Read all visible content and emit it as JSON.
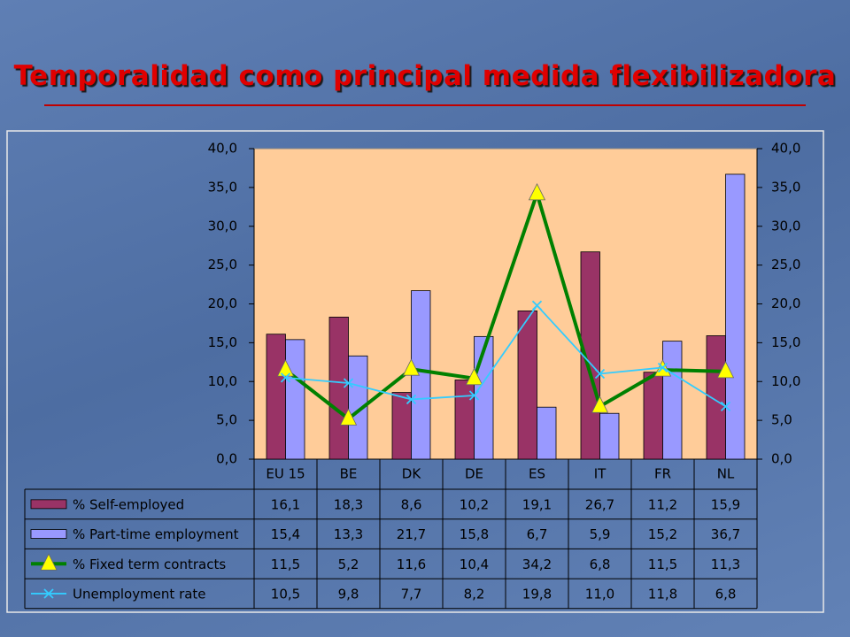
{
  "chart_data": {
    "type": "bar",
    "title": "Temporalidad como principal medida flexibilizadora",
    "categories": [
      "EU 15",
      "BE",
      "DK",
      "DE",
      "ES",
      "IT",
      "FR",
      "NL"
    ],
    "ylim": [
      0,
      40
    ],
    "y2lim": [
      0,
      40
    ],
    "yticks": [
      {
        "value": 0,
        "label": "0,0"
      },
      {
        "value": 5,
        "label": "5,0"
      },
      {
        "value": 10,
        "label": "10,0"
      },
      {
        "value": 15,
        "label": "15,0"
      },
      {
        "value": 20,
        "label": "20,0"
      },
      {
        "value": 25,
        "label": "25,0"
      },
      {
        "value": 30,
        "label": "30,0"
      },
      {
        "value": 35,
        "label": "35,0"
      },
      {
        "value": 40,
        "label": "40,0"
      }
    ],
    "y2ticks": [
      {
        "value": 0,
        "label": "0,0"
      },
      {
        "value": 5,
        "label": "5,0"
      },
      {
        "value": 10,
        "label": "10,0"
      },
      {
        "value": 15,
        "label": "15,0"
      },
      {
        "value": 20,
        "label": "20,0"
      },
      {
        "value": 25,
        "label": "25,0"
      },
      {
        "value": 30,
        "label": "30,0"
      },
      {
        "value": 35,
        "label": "35,0"
      },
      {
        "value": 40,
        "label": "40,0"
      }
    ],
    "plot_background": "#ffcc99",
    "series": [
      {
        "name": "% Self-employed",
        "type": "bar",
        "color": "#993366",
        "values": [
          16.1,
          18.3,
          8.6,
          10.2,
          19.1,
          26.7,
          11.2,
          15.9
        ],
        "value_labels": [
          "16,1",
          "18,3",
          "8,6",
          "10,2",
          "19,1",
          "26,7",
          "11,2",
          "15,9"
        ]
      },
      {
        "name": "% Part-time employment",
        "type": "bar",
        "color": "#9999ff",
        "values": [
          15.4,
          13.3,
          21.7,
          15.8,
          6.7,
          5.9,
          15.2,
          36.7
        ],
        "value_labels": [
          "15,4",
          "13,3",
          "21,7",
          "15,8",
          "6,7",
          "5,9",
          "15,2",
          "36,7"
        ]
      },
      {
        "name": "% Fixed term contracts",
        "type": "line",
        "color": "#008000",
        "marker": "triangle",
        "marker_color": "#ffff00",
        "values": [
          11.5,
          5.2,
          11.6,
          10.4,
          34.2,
          6.8,
          11.5,
          11.3
        ],
        "value_labels": [
          "11,5",
          "5,2",
          "11,6",
          "10,4",
          "34,2",
          "6,8",
          "11,5",
          "11,3"
        ]
      },
      {
        "name": "Unemployment rate",
        "type": "line",
        "color": "#33ccff",
        "marker": "x",
        "axis": "y2",
        "values": [
          10.5,
          9.8,
          7.7,
          8.2,
          19.8,
          11.0,
          11.8,
          6.8
        ],
        "value_labels": [
          "10,5",
          "9,8",
          "7,7",
          "8,2",
          "19,8",
          "11,0",
          "11,8",
          "6,8"
        ]
      }
    ]
  }
}
